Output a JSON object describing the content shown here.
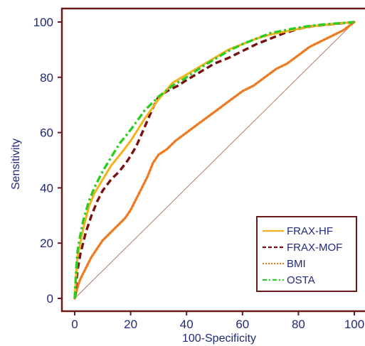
{
  "chart_data": {
    "type": "line",
    "xlabel": "100-Specificity",
    "ylabel": "Sensitivity",
    "xlim": [
      0,
      100
    ],
    "ylim": [
      0,
      100
    ],
    "xticks": [
      0,
      20,
      40,
      60,
      80,
      100
    ],
    "yticks": [
      0,
      20,
      40,
      60,
      80,
      100
    ],
    "legend_position": "bottom-right",
    "reference_line": {
      "x": [
        0,
        100
      ],
      "y": [
        0,
        100
      ],
      "color": "#b07a6a"
    },
    "series": [
      {
        "name": "FRAX-HF",
        "color": "#f5b21c",
        "dash": "solid",
        "x": [
          0,
          0.5,
          1,
          2,
          3,
          5,
          7,
          10,
          13,
          17,
          20,
          25,
          30,
          35,
          40,
          45,
          50,
          55,
          60,
          65,
          70,
          75,
          80,
          85,
          90,
          95,
          100
        ],
        "y": [
          0,
          8,
          15,
          20,
          25,
          33,
          38,
          43,
          48,
          53,
          57,
          65,
          72,
          78,
          81,
          84,
          87,
          90,
          92,
          94,
          95.5,
          96.5,
          97.5,
          98.5,
          99,
          99.5,
          100
        ]
      },
      {
        "name": "FRAX-MOF",
        "color": "#7a1010",
        "dash": "dashed",
        "x": [
          0,
          0.5,
          1,
          2,
          4,
          6,
          8,
          10,
          13,
          16,
          19,
          22,
          25,
          28,
          30,
          33,
          37,
          40,
          45,
          50,
          55,
          60,
          65,
          70,
          75,
          80,
          85,
          90,
          95,
          100
        ],
        "y": [
          0,
          5,
          10,
          16,
          24,
          30,
          35,
          39,
          43,
          46,
          50,
          55,
          62,
          69,
          73,
          75,
          77,
          79,
          82,
          85,
          87,
          89.5,
          92,
          94,
          96,
          97.5,
          98.5,
          99,
          99.5,
          100
        ]
      },
      {
        "name": "BMI",
        "color": "#ee7a22",
        "dash": "dotted",
        "x": [
          0,
          1,
          2,
          4,
          6,
          8,
          10,
          12,
          15,
          18,
          20,
          23,
          26,
          28,
          30,
          33,
          36,
          40,
          44,
          48,
          52,
          56,
          60,
          64,
          68,
          72,
          76,
          80,
          84,
          88,
          92,
          96,
          100
        ],
        "y": [
          0,
          4,
          7,
          11,
          15,
          18,
          21,
          23,
          26,
          29,
          32,
          38,
          44,
          49,
          52,
          54,
          57,
          60,
          63,
          66,
          69,
          72,
          75,
          77,
          80,
          83,
          85,
          88,
          91,
          93,
          95,
          97,
          100
        ]
      },
      {
        "name": "OSTA",
        "color": "#2dcc22",
        "dash": "dashdot",
        "x": [
          0,
          0.5,
          1,
          2,
          3,
          5,
          7,
          10,
          13,
          16,
          20,
          25,
          30,
          35,
          40,
          45,
          50,
          55,
          60,
          65,
          70,
          75,
          80,
          85,
          90,
          95,
          100
        ],
        "y": [
          0,
          10,
          17,
          23,
          28,
          35,
          40,
          46,
          51,
          56,
          61,
          68,
          73,
          77,
          80,
          83.5,
          86.5,
          89.5,
          92,
          94,
          96,
          97,
          98,
          98.7,
          99.2,
          99.6,
          100
        ]
      }
    ]
  }
}
